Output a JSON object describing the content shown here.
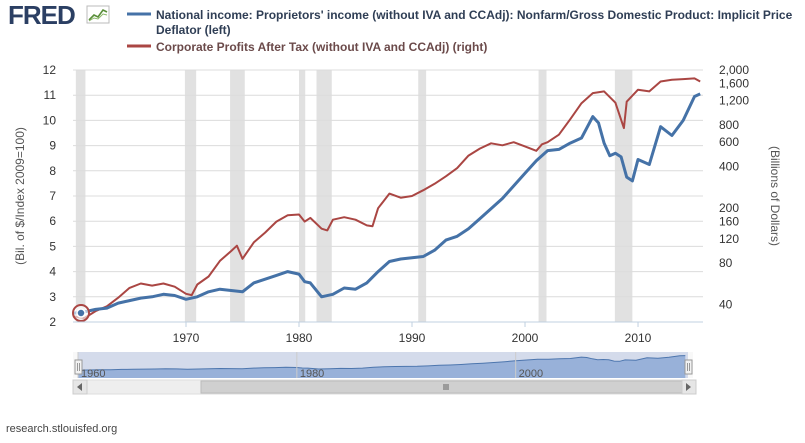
{
  "brand": {
    "logo_text": "FRED"
  },
  "footer": {
    "source": "research.stlouisfed.org"
  },
  "colors": {
    "left_series": "#4572A7",
    "right_series": "#AA4643",
    "recession": "#e1e1e1",
    "navigator_fill": "#a9c0e0",
    "navigator_line": "#4572A7",
    "scrollbar_track": "#eeeeee",
    "scrollbar_thumb": "#d0d0d0"
  },
  "chart_data": {
    "type": "line",
    "title": "",
    "xlabel": "",
    "ylabel_left": "(Bil. of $/Index 2009=100)",
    "ylabel_right": "(Billions of Dollars)",
    "xlim": [
      1960.0,
      2015.75
    ],
    "ylim_left": [
      2,
      12
    ],
    "ylim_right": [
      30,
      2000
    ],
    "right_scale": "log",
    "x_ticks": [
      1970,
      1980,
      1990,
      2000,
      2010
    ],
    "x_tick_labels": [
      "1970",
      "1980",
      "1990",
      "2000",
      "2010"
    ],
    "y_left_ticks": [
      2,
      3,
      4,
      5,
      6,
      7,
      8,
      9,
      10,
      11,
      12
    ],
    "y_left_tick_labels": [
      "2",
      "3",
      "4",
      "5",
      "6",
      "7",
      "8",
      "9",
      "10",
      "11",
      "12"
    ],
    "y_right_ticks": [
      40,
      80,
      120,
      160,
      200,
      400,
      600,
      800,
      1200,
      1600,
      2000
    ],
    "y_right_tick_labels": [
      "40",
      "80",
      "120",
      "160",
      "200",
      "400",
      "600",
      "800",
      "1,200",
      "1,600",
      "2,000"
    ],
    "recessions": [
      [
        1960.25,
        1961.1
      ],
      [
        1969.9,
        1970.9
      ],
      [
        1973.9,
        1975.2
      ],
      [
        1980.0,
        1980.55
      ],
      [
        1981.55,
        1982.9
      ],
      [
        1990.55,
        1991.25
      ],
      [
        2001.2,
        2001.9
      ],
      [
        2007.95,
        2009.5
      ]
    ],
    "series": [
      {
        "name": "National income: Proprietors' income (without IVA and CCAdj): Nonfarm/Gross Domestic Product: Implicit Price Deflator (left)",
        "axis": "left",
        "x": [
          1960.0,
          1961.0,
          1962.0,
          1963.0,
          1964.0,
          1965.0,
          1966.0,
          1967.0,
          1968.0,
          1969.0,
          1970.0,
          1971.0,
          1972.0,
          1973.0,
          1974.0,
          1975.0,
          1976.0,
          1977.0,
          1978.0,
          1979.0,
          1980.0,
          1980.5,
          1981.0,
          1982.0,
          1983.0,
          1984.0,
          1985.0,
          1986.0,
          1987.0,
          1988.0,
          1989.0,
          1990.0,
          1991.0,
          1992.0,
          1993.0,
          1994.0,
          1995.0,
          1996.0,
          1997.0,
          1998.0,
          1999.0,
          2000.0,
          2001.0,
          2002.0,
          2003.0,
          2004.0,
          2005.0,
          2006.0,
          2006.5,
          2007.0,
          2007.5,
          2008.0,
          2008.5,
          2009.0,
          2009.5,
          2010.0,
          2011.0,
          2012.0,
          2013.0,
          2014.0,
          2015.0,
          2015.5
        ],
        "values": [
          2.35,
          2.4,
          2.5,
          2.55,
          2.75,
          2.85,
          2.95,
          3.0,
          3.1,
          3.05,
          2.9,
          3.0,
          3.2,
          3.3,
          3.25,
          3.2,
          3.55,
          3.7,
          3.85,
          4.0,
          3.9,
          3.6,
          3.55,
          3.0,
          3.1,
          3.35,
          3.3,
          3.55,
          4.0,
          4.4,
          4.5,
          4.55,
          4.6,
          4.85,
          5.25,
          5.4,
          5.7,
          6.1,
          6.5,
          6.9,
          7.4,
          7.9,
          8.4,
          8.8,
          8.85,
          9.1,
          9.3,
          10.15,
          9.9,
          9.1,
          8.6,
          8.7,
          8.55,
          7.75,
          7.6,
          8.45,
          8.25,
          9.75,
          9.4,
          10.0,
          10.95,
          11.05
        ]
      },
      {
        "name": "Corporate Profits After Tax (without IVA and CCAdj) (right)",
        "axis": "right",
        "x": [
          1960.0,
          1961.0,
          1962.0,
          1963.0,
          1964.0,
          1965.0,
          1966.0,
          1967.0,
          1968.0,
          1969.0,
          1970.0,
          1970.5,
          1971.0,
          1972.0,
          1973.0,
          1974.0,
          1974.5,
          1975.0,
          1976.0,
          1977.0,
          1978.0,
          1979.0,
          1980.0,
          1980.5,
          1981.0,
          1982.0,
          1982.5,
          1983.0,
          1984.0,
          1985.0,
          1986.0,
          1986.5,
          1987.0,
          1988.0,
          1989.0,
          1990.0,
          1991.0,
          1992.0,
          1993.0,
          1994.0,
          1995.0,
          1996.0,
          1997.0,
          1998.0,
          1999.0,
          2000.0,
          2001.0,
          2001.5,
          2002.0,
          2003.0,
          2004.0,
          2005.0,
          2006.0,
          2007.0,
          2008.0,
          2008.75,
          2009.0,
          2010.0,
          2011.0,
          2012.0,
          2013.0,
          2014.0,
          2015.0,
          2015.5
        ],
        "values": [
          33,
          32,
          36,
          39,
          45,
          53,
          57,
          55,
          57,
          54,
          48,
          47,
          56,
          64,
          83,
          98,
          107,
          86,
          113,
          133,
          160,
          178,
          180,
          160,
          170,
          142,
          138,
          165,
          172,
          165,
          150,
          148,
          200,
          255,
          238,
          245,
          270,
          300,
          340,
          390,
          480,
          540,
          590,
          570,
          600,
          560,
          520,
          580,
          600,
          680,
          880,
          1150,
          1360,
          1400,
          1160,
          760,
          1180,
          1440,
          1400,
          1650,
          1700,
          1720,
          1740,
          1650
        ]
      }
    ],
    "navigator": {
      "x_ticks": [
        1960,
        1980,
        2000
      ],
      "x_tick_labels": [
        "1960",
        "1980",
        "2000"
      ],
      "selection": [
        1960.0,
        2015.75
      ]
    }
  }
}
